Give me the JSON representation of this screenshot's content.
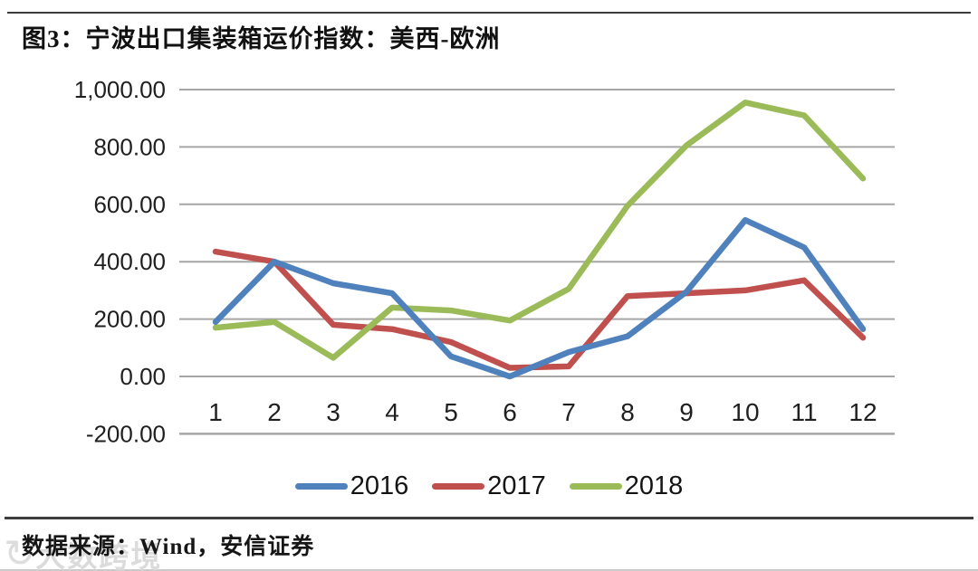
{
  "title": "图3：宁波出口集装箱运价指数：美西-欧洲",
  "footer": {
    "source": "数据来源：Wind，安信证券"
  },
  "watermark": {
    "icon_name": "circular-arrow-logo",
    "text": "大数跨境"
  },
  "chart_data": {
    "type": "line",
    "title": "宁波出口集装箱运价指数：美西-欧洲",
    "categories": [
      "1",
      "2",
      "3",
      "4",
      "5",
      "6",
      "7",
      "8",
      "9",
      "10",
      "11",
      "12"
    ],
    "series": [
      {
        "name": "2016",
        "color": "#4F81BD",
        "values": [
          190,
          400,
          325,
          290,
          70,
          0,
          85,
          140,
          295,
          545,
          450,
          165
        ]
      },
      {
        "name": "2017",
        "color": "#C0504D",
        "values": [
          435,
          400,
          180,
          165,
          120,
          30,
          35,
          280,
          290,
          300,
          335,
          135
        ]
      },
      {
        "name": "2018",
        "color": "#9BBB59",
        "values": [
          170,
          190,
          65,
          240,
          230,
          195,
          305,
          595,
          805,
          955,
          910,
          690
        ]
      }
    ],
    "xlabel": "",
    "ylabel": "",
    "ylim": [
      -200,
      1000
    ],
    "yticks": [
      {
        "value": 1000,
        "label": "1,000.00"
      },
      {
        "value": 800,
        "label": "800.00"
      },
      {
        "value": 600,
        "label": "600.00"
      },
      {
        "value": 400,
        "label": "400.00"
      },
      {
        "value": 200,
        "label": "200.00"
      },
      {
        "value": 0,
        "label": "0.00"
      },
      {
        "value": -200,
        "label": "-200.00"
      }
    ],
    "grid": true,
    "gridline_color": "#A6A6A6",
    "legend_position": "bottom"
  }
}
